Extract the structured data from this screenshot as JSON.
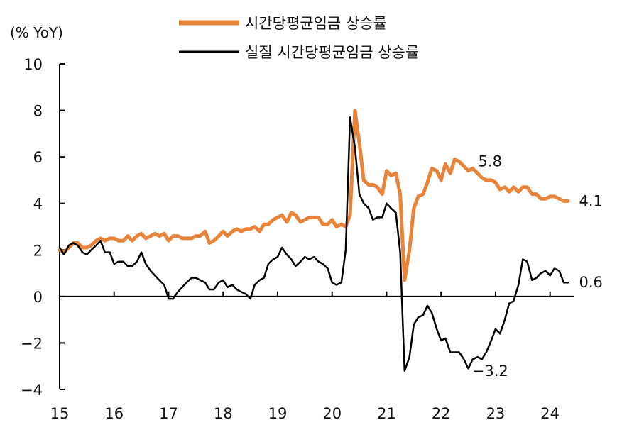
{
  "chart_data": {
    "type": "line",
    "title": "",
    "unit_label": "(% YoY)",
    "xlabel": "",
    "ylabel": "",
    "ylim": [
      -4,
      10
    ],
    "yticks": [
      10,
      8,
      6,
      4,
      2,
      0,
      -2,
      -4
    ],
    "yticklabels": [
      "10",
      "8",
      "6",
      "4",
      "2",
      "0",
      "−2",
      "−4"
    ],
    "xlim": [
      2015.0,
      2024.33
    ],
    "xticks": [
      2015,
      2016,
      2017,
      2018,
      2019,
      2020,
      2021,
      2022,
      2023,
      2024
    ],
    "xticklabels": [
      "15",
      "16",
      "17",
      "18",
      "19",
      "20",
      "21",
      "22",
      "23",
      "24"
    ],
    "grid": false,
    "legend_position": "top-center",
    "series": [
      {
        "name": "시간당평균임금 상승률",
        "color": "#e8843a",
        "line_width": 5,
        "points": [
          [
            2015.0,
            2.0
          ],
          [
            2015.08,
            1.9
          ],
          [
            2015.17,
            2.1
          ],
          [
            2015.25,
            2.3
          ],
          [
            2015.33,
            2.3
          ],
          [
            2015.42,
            2.1
          ],
          [
            2015.5,
            2.1
          ],
          [
            2015.58,
            2.2
          ],
          [
            2015.67,
            2.4
          ],
          [
            2015.75,
            2.5
          ],
          [
            2015.83,
            2.4
          ],
          [
            2015.92,
            2.5
          ],
          [
            2016.0,
            2.5
          ],
          [
            2016.08,
            2.4
          ],
          [
            2016.17,
            2.4
          ],
          [
            2016.25,
            2.6
          ],
          [
            2016.33,
            2.4
          ],
          [
            2016.42,
            2.6
          ],
          [
            2016.5,
            2.7
          ],
          [
            2016.58,
            2.5
          ],
          [
            2016.67,
            2.6
          ],
          [
            2016.75,
            2.7
          ],
          [
            2016.83,
            2.6
          ],
          [
            2016.92,
            2.7
          ],
          [
            2017.0,
            2.4
          ],
          [
            2017.08,
            2.6
          ],
          [
            2017.17,
            2.6
          ],
          [
            2017.25,
            2.5
          ],
          [
            2017.33,
            2.5
          ],
          [
            2017.42,
            2.5
          ],
          [
            2017.5,
            2.6
          ],
          [
            2017.58,
            2.6
          ],
          [
            2017.67,
            2.8
          ],
          [
            2017.75,
            2.3
          ],
          [
            2017.83,
            2.4
          ],
          [
            2017.92,
            2.6
          ],
          [
            2018.0,
            2.8
          ],
          [
            2018.08,
            2.6
          ],
          [
            2018.17,
            2.8
          ],
          [
            2018.25,
            2.9
          ],
          [
            2018.33,
            2.8
          ],
          [
            2018.42,
            2.9
          ],
          [
            2018.5,
            2.9
          ],
          [
            2018.58,
            3.0
          ],
          [
            2018.67,
            2.8
          ],
          [
            2018.75,
            3.1
          ],
          [
            2018.83,
            3.1
          ],
          [
            2018.92,
            3.3
          ],
          [
            2019.0,
            3.4
          ],
          [
            2019.08,
            3.5
          ],
          [
            2019.17,
            3.2
          ],
          [
            2019.25,
            3.6
          ],
          [
            2019.33,
            3.5
          ],
          [
            2019.42,
            3.2
          ],
          [
            2019.5,
            3.3
          ],
          [
            2019.58,
            3.4
          ],
          [
            2019.67,
            3.4
          ],
          [
            2019.75,
            3.4
          ],
          [
            2019.83,
            3.1
          ],
          [
            2019.92,
            3.1
          ],
          [
            2020.0,
            3.3
          ],
          [
            2020.08,
            3.0
          ],
          [
            2020.17,
            3.1
          ],
          [
            2020.25,
            3.0
          ],
          [
            2020.33,
            3.5
          ],
          [
            2020.42,
            8.0
          ],
          [
            2020.5,
            6.6
          ],
          [
            2020.58,
            5.0
          ],
          [
            2020.67,
            4.8
          ],
          [
            2020.75,
            4.8
          ],
          [
            2020.83,
            4.7
          ],
          [
            2020.92,
            4.4
          ],
          [
            2021.0,
            5.4
          ],
          [
            2021.08,
            5.2
          ],
          [
            2021.17,
            5.3
          ],
          [
            2021.25,
            4.4
          ],
          [
            2021.33,
            0.7
          ],
          [
            2021.42,
            2.0
          ],
          [
            2021.5,
            3.8
          ],
          [
            2021.58,
            4.3
          ],
          [
            2021.67,
            4.4
          ],
          [
            2021.75,
            4.9
          ],
          [
            2021.83,
            5.5
          ],
          [
            2021.92,
            5.4
          ],
          [
            2022.0,
            5.0
          ],
          [
            2022.08,
            5.7
          ],
          [
            2022.17,
            5.3
          ],
          [
            2022.25,
            5.9
          ],
          [
            2022.33,
            5.8
          ],
          [
            2022.42,
            5.6
          ],
          [
            2022.5,
            5.4
          ],
          [
            2022.58,
            5.5
          ],
          [
            2022.67,
            5.3
          ],
          [
            2022.75,
            5.1
          ],
          [
            2022.83,
            5.0
          ],
          [
            2022.92,
            5.0
          ],
          [
            2023.0,
            4.9
          ],
          [
            2023.08,
            4.6
          ],
          [
            2023.17,
            4.7
          ],
          [
            2023.25,
            4.5
          ],
          [
            2023.33,
            4.7
          ],
          [
            2023.42,
            4.5
          ],
          [
            2023.5,
            4.7
          ],
          [
            2023.58,
            4.7
          ],
          [
            2023.67,
            4.4
          ],
          [
            2023.75,
            4.4
          ],
          [
            2023.83,
            4.2
          ],
          [
            2023.92,
            4.2
          ],
          [
            2024.0,
            4.3
          ],
          [
            2024.08,
            4.3
          ],
          [
            2024.17,
            4.2
          ],
          [
            2024.25,
            4.1
          ],
          [
            2024.33,
            4.1
          ]
        ]
      },
      {
        "name": "실질 시간당평균임금 상승률",
        "color": "#000000",
        "line_width": 2.5,
        "points": [
          [
            2015.0,
            2.1
          ],
          [
            2015.08,
            1.8
          ],
          [
            2015.17,
            2.2
          ],
          [
            2015.25,
            2.3
          ],
          [
            2015.33,
            2.2
          ],
          [
            2015.42,
            1.9
          ],
          [
            2015.5,
            1.8
          ],
          [
            2015.58,
            2.0
          ],
          [
            2015.67,
            2.2
          ],
          [
            2015.75,
            2.4
          ],
          [
            2015.83,
            1.9
          ],
          [
            2015.92,
            1.9
          ],
          [
            2016.0,
            1.4
          ],
          [
            2016.08,
            1.5
          ],
          [
            2016.17,
            1.5
          ],
          [
            2016.25,
            1.3
          ],
          [
            2016.33,
            1.3
          ],
          [
            2016.42,
            1.5
          ],
          [
            2016.5,
            1.9
          ],
          [
            2016.58,
            1.4
          ],
          [
            2016.67,
            1.1
          ],
          [
            2016.75,
            0.9
          ],
          [
            2016.83,
            0.7
          ],
          [
            2016.92,
            0.5
          ],
          [
            2017.0,
            -0.1
          ],
          [
            2017.08,
            -0.1
          ],
          [
            2017.17,
            0.2
          ],
          [
            2017.25,
            0.4
          ],
          [
            2017.33,
            0.6
          ],
          [
            2017.42,
            0.8
          ],
          [
            2017.5,
            0.8
          ],
          [
            2017.58,
            0.7
          ],
          [
            2017.67,
            0.6
          ],
          [
            2017.75,
            0.3
          ],
          [
            2017.83,
            0.3
          ],
          [
            2017.92,
            0.6
          ],
          [
            2018.0,
            0.7
          ],
          [
            2018.08,
            0.4
          ],
          [
            2018.17,
            0.5
          ],
          [
            2018.25,
            0.3
          ],
          [
            2018.33,
            0.2
          ],
          [
            2018.42,
            0.1
          ],
          [
            2018.5,
            -0.1
          ],
          [
            2018.58,
            0.5
          ],
          [
            2018.67,
            0.7
          ],
          [
            2018.75,
            0.8
          ],
          [
            2018.83,
            1.4
          ],
          [
            2018.92,
            1.6
          ],
          [
            2019.0,
            1.7
          ],
          [
            2019.08,
            2.1
          ],
          [
            2019.17,
            1.8
          ],
          [
            2019.25,
            1.6
          ],
          [
            2019.33,
            1.3
          ],
          [
            2019.42,
            1.5
          ],
          [
            2019.5,
            1.7
          ],
          [
            2019.58,
            1.6
          ],
          [
            2019.67,
            1.7
          ],
          [
            2019.75,
            1.5
          ],
          [
            2019.83,
            1.4
          ],
          [
            2019.92,
            1.2
          ],
          [
            2020.0,
            0.6
          ],
          [
            2020.08,
            0.5
          ],
          [
            2020.17,
            0.6
          ],
          [
            2020.25,
            2.0
          ],
          [
            2020.33,
            7.7
          ],
          [
            2020.42,
            6.4
          ],
          [
            2020.5,
            4.4
          ],
          [
            2020.58,
            4.0
          ],
          [
            2020.67,
            3.8
          ],
          [
            2020.75,
            3.3
          ],
          [
            2020.83,
            3.4
          ],
          [
            2020.92,
            3.4
          ],
          [
            2021.0,
            4.0
          ],
          [
            2021.08,
            3.8
          ],
          [
            2021.17,
            3.6
          ],
          [
            2021.25,
            1.9
          ],
          [
            2021.33,
            -3.2
          ],
          [
            2021.42,
            -2.6
          ],
          [
            2021.5,
            -1.2
          ],
          [
            2021.58,
            -0.9
          ],
          [
            2021.67,
            -0.8
          ],
          [
            2021.75,
            -0.4
          ],
          [
            2021.83,
            -0.7
          ],
          [
            2021.92,
            -1.4
          ],
          [
            2022.0,
            -1.9
          ],
          [
            2022.08,
            -1.8
          ],
          [
            2022.17,
            -2.4
          ],
          [
            2022.25,
            -2.4
          ],
          [
            2022.33,
            -2.4
          ],
          [
            2022.42,
            -2.7
          ],
          [
            2022.5,
            -3.1
          ],
          [
            2022.58,
            -2.7
          ],
          [
            2022.67,
            -2.6
          ],
          [
            2022.75,
            -2.7
          ],
          [
            2022.83,
            -2.4
          ],
          [
            2022.92,
            -1.9
          ],
          [
            2023.0,
            -1.4
          ],
          [
            2023.08,
            -1.6
          ],
          [
            2023.17,
            -1.0
          ],
          [
            2023.25,
            -0.3
          ],
          [
            2023.33,
            -0.2
          ],
          [
            2023.42,
            0.5
          ],
          [
            2023.5,
            1.6
          ],
          [
            2023.58,
            1.5
          ],
          [
            2023.67,
            0.7
          ],
          [
            2023.75,
            0.8
          ],
          [
            2023.83,
            1.0
          ],
          [
            2023.92,
            1.1
          ],
          [
            2024.0,
            0.9
          ],
          [
            2024.08,
            1.2
          ],
          [
            2024.17,
            1.1
          ],
          [
            2024.25,
            0.6
          ],
          [
            2024.33,
            0.6
          ]
        ]
      }
    ],
    "annotations": [
      {
        "text": "5.8",
        "x": 2022.9,
        "y": 5.8
      },
      {
        "text": "4.1",
        "x": 2024.75,
        "y": 4.1
      },
      {
        "text": "0.6",
        "x": 2024.75,
        "y": 0.6
      },
      {
        "text": "−3.2",
        "x": 2022.9,
        "y": -3.2
      }
    ]
  }
}
